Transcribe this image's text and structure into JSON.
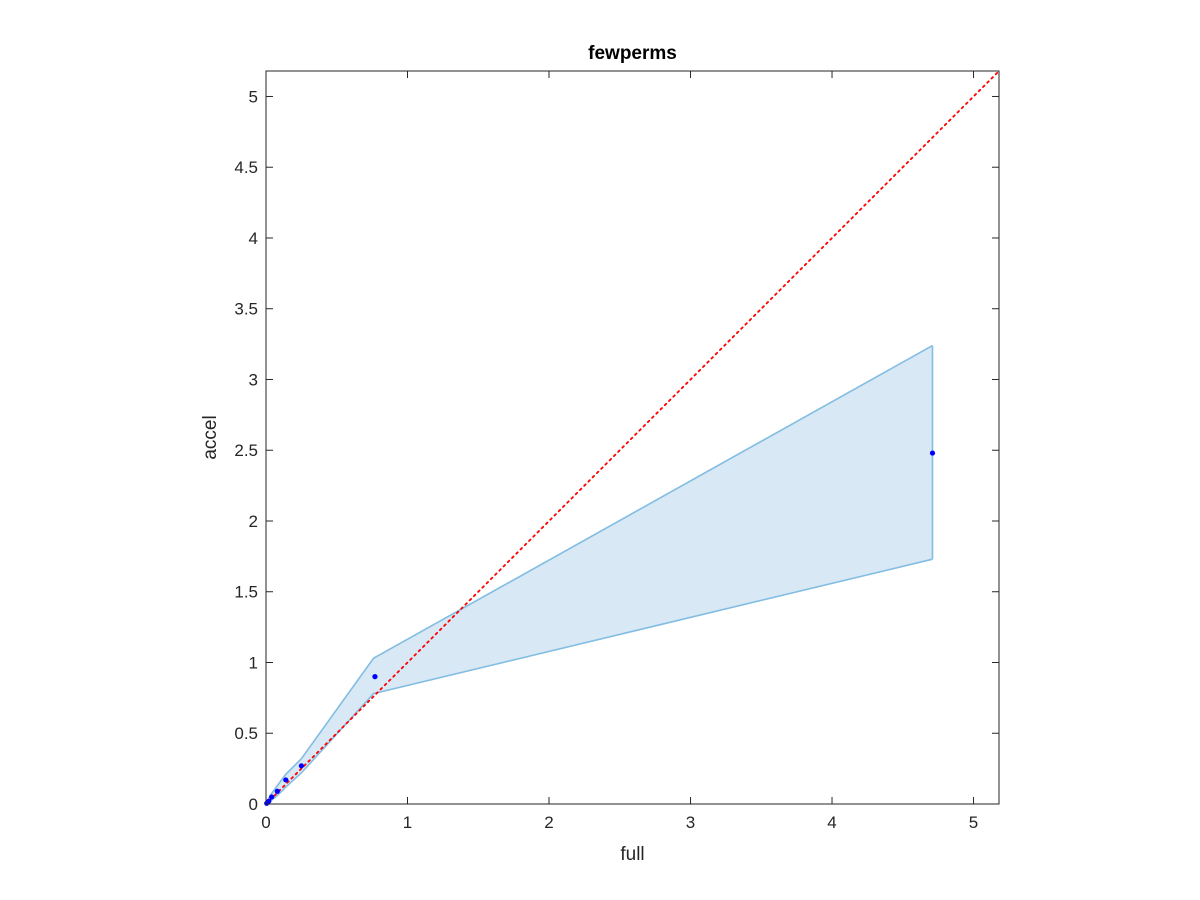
{
  "chart_data": {
    "type": "scatter",
    "title": "fewperms",
    "xlabel": "full",
    "ylabel": "accel",
    "xlim": [
      0,
      5.18
    ],
    "ylim": [
      0,
      5.18
    ],
    "xticks": [
      0,
      1,
      2,
      3,
      4,
      5
    ],
    "xtick_labels": [
      "0",
      "1",
      "2",
      "3",
      "4",
      "5"
    ],
    "yticks": [
      0,
      0.5,
      1,
      1.5,
      2,
      2.5,
      3,
      3.5,
      4,
      4.5,
      5
    ],
    "ytick_labels": [
      "0",
      "0.5",
      "1",
      "1.5",
      "2",
      "2.5",
      "3",
      "3.5",
      "4",
      "4.5",
      "5"
    ],
    "grid": false,
    "points": {
      "color": "#0000ff",
      "x": [
        0.005,
        0.02,
        0.04,
        0.08,
        0.14,
        0.25,
        0.77,
        4.71
      ],
      "y": [
        0.005,
        0.02,
        0.05,
        0.09,
        0.17,
        0.27,
        0.9,
        2.48
      ]
    },
    "band": {
      "line_color": "#82bde2",
      "fill_color": "#d9e8f5",
      "x": [
        0.0,
        0.03,
        0.08,
        0.14,
        0.25,
        0.76,
        4.71
      ],
      "upper": [
        0.0,
        0.06,
        0.13,
        0.21,
        0.32,
        1.03,
        3.24
      ],
      "lower": [
        0.0,
        0.02,
        0.06,
        0.12,
        0.22,
        0.78,
        1.73
      ]
    },
    "reference_line": {
      "style": "dotted",
      "color": "#ff0000",
      "x": [
        0,
        5.18
      ],
      "y": [
        0,
        5.18
      ]
    }
  }
}
